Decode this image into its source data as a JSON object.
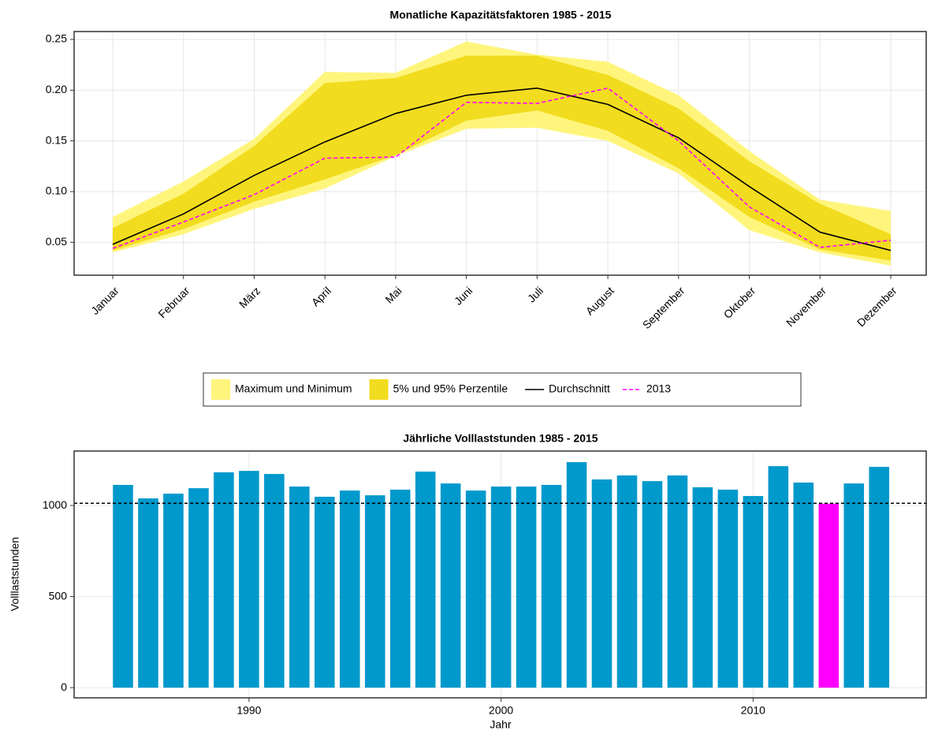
{
  "chart_data": [
    {
      "type": "line",
      "title": "Monatliche Kapazitätsfaktoren 1985 - 2015",
      "categories": [
        "Januar",
        "Februar",
        "März",
        "April",
        "Mai",
        "Juni",
        "Juli",
        "August",
        "September",
        "Oktober",
        "November",
        "Dezember"
      ],
      "bands": [
        {
          "name": "Maximum und Minimum",
          "color": "#fff57c",
          "upper": [
            0.075,
            0.11,
            0.152,
            0.218,
            0.217,
            0.248,
            0.235,
            0.228,
            0.195,
            0.14,
            0.092,
            0.081
          ],
          "lower": [
            0.04,
            0.058,
            0.083,
            0.103,
            0.135,
            0.162,
            0.163,
            0.15,
            0.118,
            0.062,
            0.04,
            0.027
          ]
        },
        {
          "name": "5% und 95% Perzentile",
          "color": "#f2dc1f",
          "upper": [
            0.064,
            0.098,
            0.145,
            0.207,
            0.212,
            0.234,
            0.234,
            0.215,
            0.182,
            0.13,
            0.088,
            0.058
          ],
          "lower": [
            0.042,
            0.063,
            0.09,
            0.112,
            0.136,
            0.17,
            0.18,
            0.16,
            0.123,
            0.075,
            0.043,
            0.032
          ]
        }
      ],
      "series": [
        {
          "name": "Durchschnitt",
          "color": "#000000",
          "dashed": false,
          "values": [
            0.048,
            0.078,
            0.116,
            0.149,
            0.177,
            0.195,
            0.202,
            0.186,
            0.153,
            0.105,
            0.06,
            0.042
          ]
        },
        {
          "name": "2013",
          "color": "#ff00ff",
          "dashed": true,
          "values": [
            0.044,
            0.07,
            0.097,
            0.133,
            0.134,
            0.188,
            0.187,
            0.202,
            0.15,
            0.085,
            0.045,
            0.052
          ]
        }
      ],
      "ylim": [
        0.0176,
        0.2578
      ],
      "yticks": [
        0.05,
        {
          "value": 0.1,
          "label": "0.10"
        },
        0.15,
        {
          "value": 0.2,
          "label": "0.20"
        },
        0.25
      ],
      "grid": true,
      "legend": "bottom"
    },
    {
      "type": "bar",
      "title": "Jährliche Volllaststunden 1985 - 2015",
      "x": [
        1985,
        1986,
        1987,
        1988,
        1989,
        1990,
        1991,
        1992,
        1993,
        1994,
        1995,
        1996,
        1997,
        1998,
        1999,
        2000,
        2001,
        2002,
        2003,
        2004,
        2005,
        2006,
        2007,
        2008,
        2009,
        2010,
        2011,
        2012,
        2013,
        2014,
        2015
      ],
      "values": [
        1113,
        1039,
        1065,
        1095,
        1182,
        1190,
        1173,
        1104,
        1048,
        1082,
        1056,
        1087,
        1186,
        1121,
        1082,
        1104,
        1104,
        1113,
        1238,
        1143,
        1165,
        1134,
        1165,
        1100,
        1087,
        1052,
        1216,
        1126,
        1010,
        1121,
        1212
      ],
      "colors": [
        "#0099cc",
        "#0099cc",
        "#0099cc",
        "#0099cc",
        "#0099cc",
        "#0099cc",
        "#0099cc",
        "#0099cc",
        "#0099cc",
        "#0099cc",
        "#0099cc",
        "#0099cc",
        "#0099cc",
        "#0099cc",
        "#0099cc",
        "#0099cc",
        "#0099cc",
        "#0099cc",
        "#0099cc",
        "#0099cc",
        "#0099cc",
        "#0099cc",
        "#0099cc",
        "#0099cc",
        "#0099cc",
        "#0099cc",
        "#0099cc",
        "#0099cc",
        "#ff00ff",
        "#0099cc",
        "#0099cc"
      ],
      "hline": 1012,
      "hline_color": "#000000",
      "xlabel": "Jahr",
      "ylabel": "Volllaststunden",
      "xlim": [
        1983.06,
        2016.9
      ],
      "xticks": [
        1990,
        2000,
        2010
      ],
      "ylim": [
        -56,
        1299
      ],
      "yticks": [
        0,
        500,
        1000
      ],
      "grid": true
    }
  ]
}
